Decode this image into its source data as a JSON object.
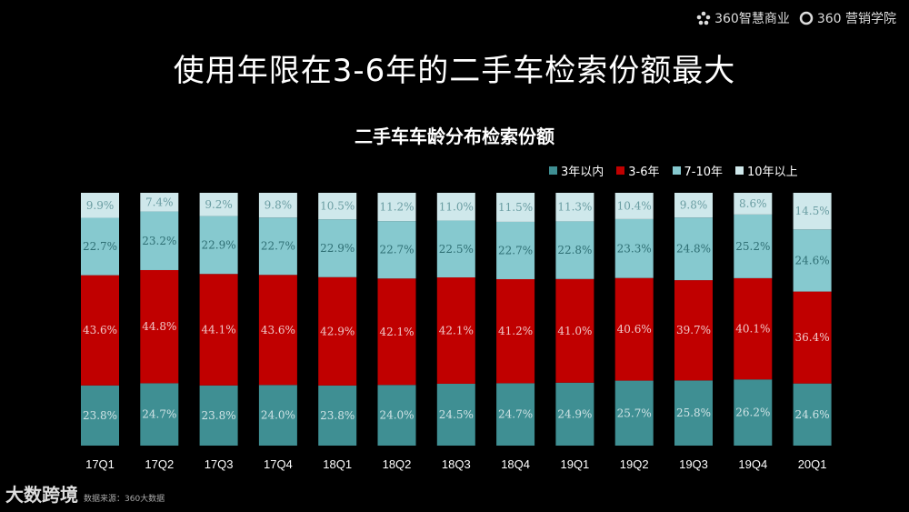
{
  "logos": {
    "left": "360智慧商业",
    "right": "360 营销学院"
  },
  "title": "使用年限在3-6年的二手车检索份额最大",
  "footer": {
    "brand": "大数跨境",
    "source": "数据来源：360大数据"
  },
  "colors": {
    "seg0": "#3f8f93",
    "seg1": "#c00000",
    "seg2": "#86c9cf",
    "seg3": "#cfe8eb"
  },
  "chart_data": {
    "type": "bar",
    "stacked": true,
    "title": "二手车车龄分布检索份额",
    "categories": [
      "17Q1",
      "17Q2",
      "17Q3",
      "17Q4",
      "18Q1",
      "18Q2",
      "18Q3",
      "18Q4",
      "19Q1",
      "19Q2",
      "19Q3",
      "19Q4",
      "20Q1"
    ],
    "series": [
      {
        "name": "3年以内",
        "values": [
          23.8,
          24.7,
          23.8,
          24.0,
          23.8,
          24.0,
          24.5,
          24.7,
          24.9,
          25.7,
          25.8,
          26.2,
          24.6
        ]
      },
      {
        "name": "3-6年",
        "values": [
          43.6,
          44.8,
          44.1,
          43.6,
          42.9,
          42.1,
          42.1,
          41.2,
          41.0,
          40.6,
          39.7,
          40.1,
          36.4
        ]
      },
      {
        "name": "7-10年",
        "values": [
          22.7,
          23.2,
          22.9,
          22.7,
          22.9,
          22.7,
          22.5,
          22.7,
          22.8,
          23.3,
          24.8,
          25.2,
          24.6
        ]
      },
      {
        "name": "10年以上",
        "values": [
          9.9,
          7.4,
          9.2,
          9.8,
          10.5,
          11.2,
          11.0,
          11.5,
          11.3,
          10.4,
          9.8,
          8.6,
          14.5
        ]
      }
    ],
    "value_suffix": "%",
    "ylim": [
      0,
      100
    ]
  }
}
